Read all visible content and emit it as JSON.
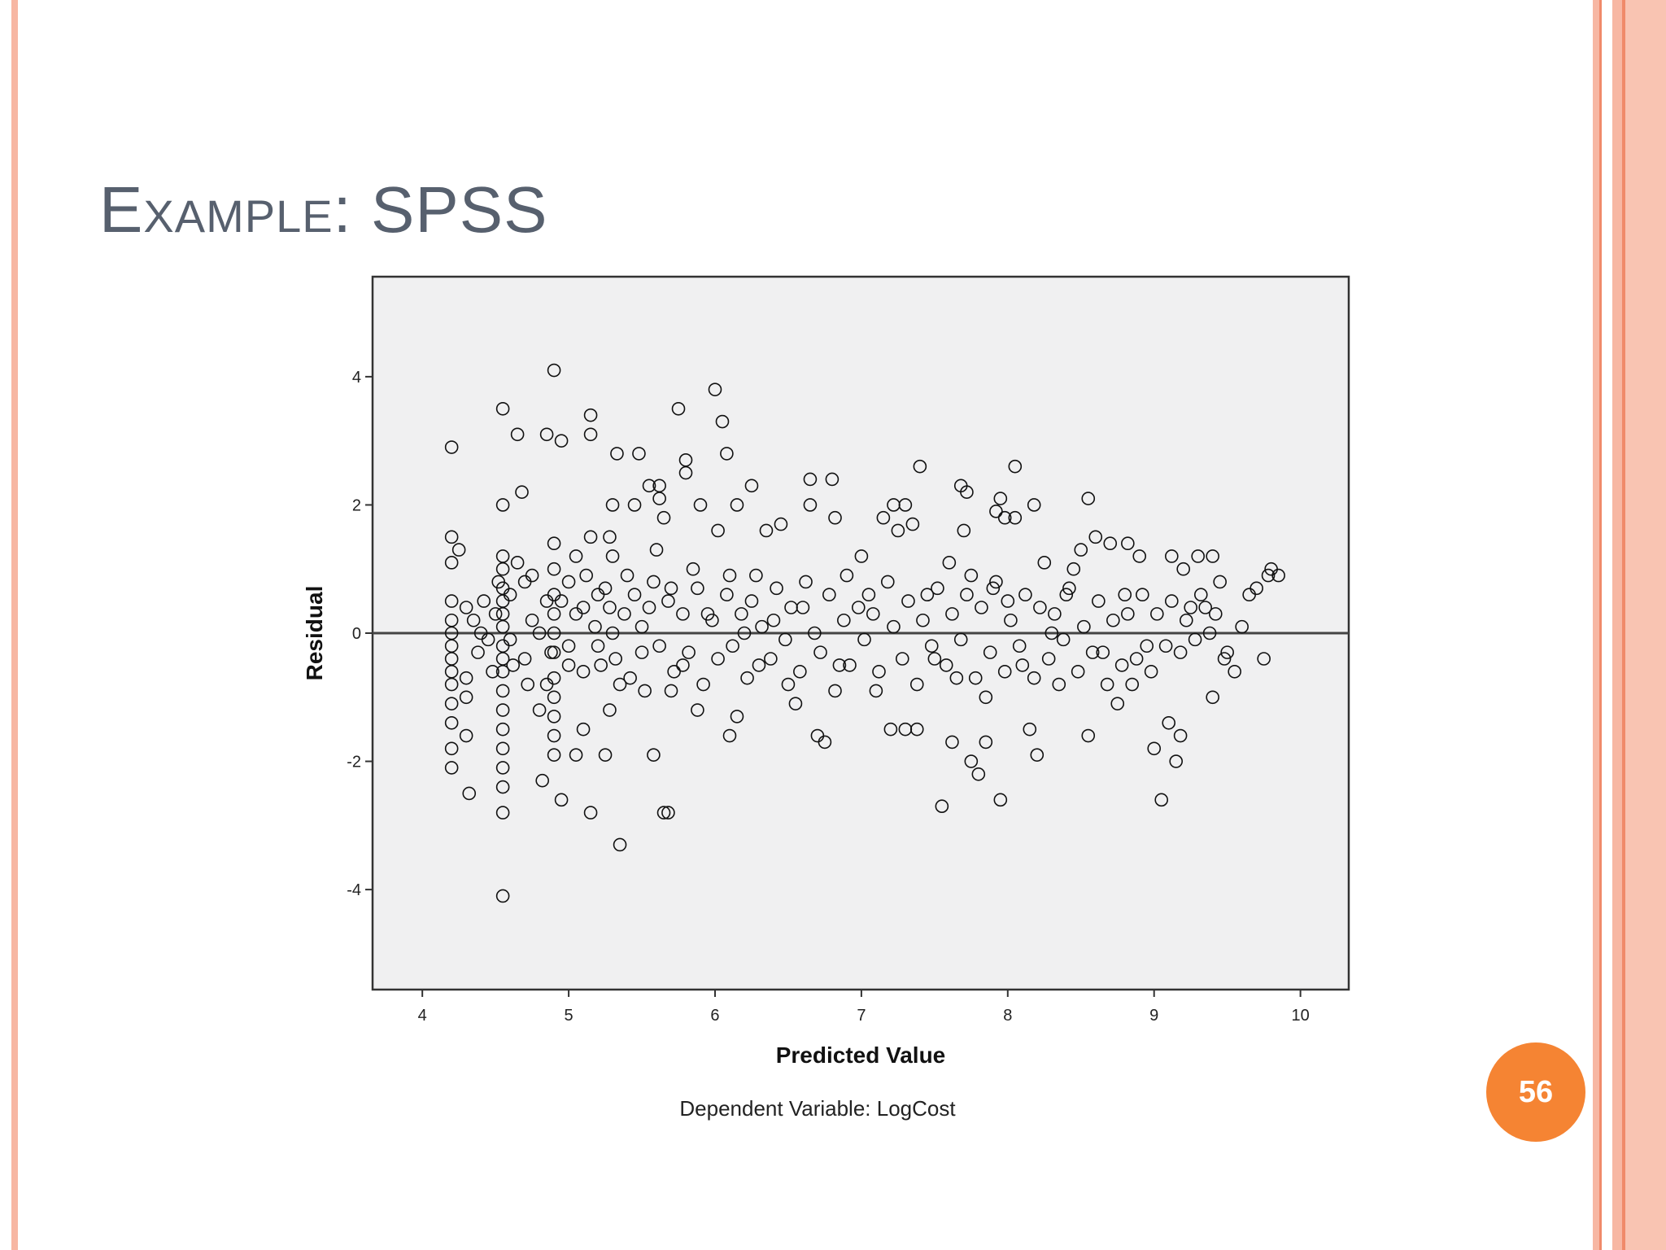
{
  "slide": {
    "title": "Example: SPSS",
    "page_number": "56"
  },
  "colors": {
    "title": "#57606e",
    "plot_background": "#f0f0f1",
    "badge": "#f58433",
    "decor_light": "#f7b7a3",
    "decor_dark": "#f08a6a"
  },
  "chart_data": {
    "type": "scatter",
    "title": "",
    "footnote": "Dependent Variable: LogCost",
    "xlabel": "Predicted Value",
    "ylabel": "Residual",
    "xlim": [
      3.66,
      10.33
    ],
    "ylim": [
      -5.56,
      5.56
    ],
    "xticks": [
      4,
      5,
      6,
      7,
      8,
      9,
      10
    ],
    "yticks": [
      -4,
      -2,
      0,
      2,
      4
    ],
    "reference_line_y": 0,
    "marker": "open-circle",
    "grid": false,
    "points": [
      [
        4.2,
        2.9
      ],
      [
        4.2,
        1.5
      ],
      [
        4.2,
        1.1
      ],
      [
        4.2,
        0.5
      ],
      [
        4.2,
        0.2
      ],
      [
        4.2,
        0.0
      ],
      [
        4.2,
        -0.2
      ],
      [
        4.2,
        -0.4
      ],
      [
        4.2,
        -0.6
      ],
      [
        4.2,
        -0.8
      ],
      [
        4.2,
        -1.1
      ],
      [
        4.2,
        -1.4
      ],
      [
        4.2,
        -1.8
      ],
      [
        4.2,
        -2.1
      ],
      [
        4.25,
        1.3
      ],
      [
        4.3,
        0.4
      ],
      [
        4.3,
        -0.7
      ],
      [
        4.3,
        -1.0
      ],
      [
        4.3,
        -1.6
      ],
      [
        4.32,
        -2.5
      ],
      [
        4.4,
        0.0
      ],
      [
        4.45,
        -0.1
      ],
      [
        4.5,
        0.3
      ],
      [
        4.55,
        3.5
      ],
      [
        4.55,
        2.0
      ],
      [
        4.55,
        1.2
      ],
      [
        4.55,
        1.0
      ],
      [
        4.55,
        0.7
      ],
      [
        4.55,
        0.5
      ],
      [
        4.55,
        0.3
      ],
      [
        4.55,
        0.1
      ],
      [
        4.55,
        -0.2
      ],
      [
        4.55,
        -0.4
      ],
      [
        4.55,
        -0.6
      ],
      [
        4.55,
        -0.9
      ],
      [
        4.55,
        -1.2
      ],
      [
        4.55,
        -1.5
      ],
      [
        4.55,
        -1.8
      ],
      [
        4.55,
        -2.1
      ],
      [
        4.55,
        -2.4
      ],
      [
        4.55,
        -2.8
      ],
      [
        4.55,
        -4.1
      ],
      [
        4.6,
        0.6
      ],
      [
        4.62,
        -0.5
      ],
      [
        4.65,
        3.1
      ],
      [
        4.68,
        2.2
      ],
      [
        4.7,
        0.8
      ],
      [
        4.72,
        -0.8
      ],
      [
        4.75,
        0.2
      ],
      [
        4.8,
        -1.2
      ],
      [
        4.82,
        -2.3
      ],
      [
        4.85,
        3.1
      ],
      [
        4.85,
        0.5
      ],
      [
        4.88,
        -0.3
      ],
      [
        4.9,
        4.1
      ],
      [
        4.9,
        1.4
      ],
      [
        4.9,
        1.0
      ],
      [
        4.9,
        0.6
      ],
      [
        4.9,
        0.3
      ],
      [
        4.9,
        0.0
      ],
      [
        4.9,
        -0.3
      ],
      [
        4.9,
        -0.7
      ],
      [
        4.9,
        -1.0
      ],
      [
        4.9,
        -1.3
      ],
      [
        4.9,
        -1.6
      ],
      [
        4.9,
        -1.9
      ],
      [
        4.95,
        3.0
      ],
      [
        4.95,
        -2.6
      ],
      [
        5.0,
        0.8
      ],
      [
        5.0,
        -0.5
      ],
      [
        5.05,
        1.2
      ],
      [
        5.05,
        -1.9
      ],
      [
        5.1,
        0.4
      ],
      [
        5.1,
        -1.5
      ],
      [
        5.15,
        3.4
      ],
      [
        5.15,
        3.1
      ],
      [
        5.15,
        1.5
      ],
      [
        5.15,
        -2.8
      ],
      [
        5.2,
        0.6
      ],
      [
        5.2,
        -0.2
      ],
      [
        5.25,
        -1.9
      ],
      [
        5.28,
        1.5
      ],
      [
        5.28,
        0.4
      ],
      [
        5.28,
        -1.2
      ],
      [
        5.3,
        2.0
      ],
      [
        5.3,
        1.2
      ],
      [
        5.3,
        0.0
      ],
      [
        5.33,
        2.8
      ],
      [
        5.35,
        -3.3
      ],
      [
        5.35,
        -0.8
      ],
      [
        5.4,
        0.9
      ],
      [
        5.45,
        2.0
      ],
      [
        5.48,
        2.8
      ],
      [
        5.5,
        -0.3
      ],
      [
        5.55,
        2.3
      ],
      [
        5.55,
        0.4
      ],
      [
        5.58,
        -1.9
      ],
      [
        5.6,
        1.3
      ],
      [
        5.62,
        2.3
      ],
      [
        5.62,
        2.1
      ],
      [
        5.65,
        1.8
      ],
      [
        5.65,
        -2.8
      ],
      [
        5.68,
        -2.8
      ],
      [
        5.7,
        0.7
      ],
      [
        5.7,
        -0.9
      ],
      [
        5.75,
        3.5
      ],
      [
        5.78,
        -0.5
      ],
      [
        5.8,
        2.7
      ],
      [
        5.8,
        2.5
      ],
      [
        5.85,
        1.0
      ],
      [
        5.88,
        -1.2
      ],
      [
        5.9,
        2.0
      ],
      [
        5.95,
        0.3
      ],
      [
        6.0,
        3.8
      ],
      [
        6.02,
        1.6
      ],
      [
        6.05,
        3.3
      ],
      [
        6.08,
        2.8
      ],
      [
        6.1,
        -1.6
      ],
      [
        6.1,
        0.9
      ],
      [
        6.15,
        -1.3
      ],
      [
        6.15,
        2.0
      ],
      [
        6.2,
        0.0
      ],
      [
        6.25,
        2.3
      ],
      [
        6.25,
        0.5
      ],
      [
        6.3,
        -0.5
      ],
      [
        6.35,
        1.6
      ],
      [
        6.4,
        0.2
      ],
      [
        6.45,
        1.7
      ],
      [
        6.5,
        -0.8
      ],
      [
        6.55,
        -1.1
      ],
      [
        6.6,
        0.4
      ],
      [
        6.65,
        2.4
      ],
      [
        6.65,
        2.0
      ],
      [
        6.7,
        -1.6
      ],
      [
        6.75,
        -1.7
      ],
      [
        6.8,
        2.4
      ],
      [
        6.82,
        1.8
      ],
      [
        6.85,
        -0.5
      ],
      [
        6.9,
        0.9
      ],
      [
        7.0,
        1.2
      ],
      [
        7.05,
        0.6
      ],
      [
        7.1,
        -0.9
      ],
      [
        7.15,
        1.8
      ],
      [
        7.2,
        -1.5
      ],
      [
        7.22,
        2.0
      ],
      [
        7.25,
        1.6
      ],
      [
        7.3,
        2.0
      ],
      [
        7.3,
        -1.5
      ],
      [
        7.35,
        1.7
      ],
      [
        7.38,
        -1.5
      ],
      [
        7.4,
        2.6
      ],
      [
        7.45,
        0.6
      ],
      [
        7.5,
        -0.4
      ],
      [
        7.55,
        -2.7
      ],
      [
        7.6,
        1.1
      ],
      [
        7.62,
        -1.7
      ],
      [
        7.65,
        -0.7
      ],
      [
        7.68,
        2.3
      ],
      [
        7.7,
        1.6
      ],
      [
        7.72,
        2.2
      ],
      [
        7.75,
        0.9
      ],
      [
        7.75,
        -2.0
      ],
      [
        7.8,
        -2.2
      ],
      [
        7.85,
        -1.7
      ],
      [
        7.85,
        -1.0
      ],
      [
        7.9,
        0.7
      ],
      [
        7.92,
        1.9
      ],
      [
        7.95,
        2.1
      ],
      [
        7.95,
        -2.6
      ],
      [
        7.98,
        1.8
      ],
      [
        8.0,
        0.5
      ],
      [
        8.05,
        1.8
      ],
      [
        8.05,
        2.6
      ],
      [
        8.1,
        -0.5
      ],
      [
        8.15,
        -1.5
      ],
      [
        8.18,
        2.0
      ],
      [
        8.2,
        -1.9
      ],
      [
        8.25,
        1.1
      ],
      [
        8.3,
        0.0
      ],
      [
        8.35,
        -0.8
      ],
      [
        8.4,
        0.6
      ],
      [
        8.45,
        1.0
      ],
      [
        8.5,
        1.3
      ],
      [
        8.55,
        2.1
      ],
      [
        8.55,
        -1.6
      ],
      [
        8.6,
        1.5
      ],
      [
        8.65,
        -0.3
      ],
      [
        8.7,
        1.4
      ],
      [
        8.75,
        -1.1
      ],
      [
        8.8,
        0.6
      ],
      [
        8.82,
        1.4
      ],
      [
        8.85,
        -0.8
      ],
      [
        8.9,
        1.2
      ],
      [
        8.95,
        -0.2
      ],
      [
        9.0,
        -1.8
      ],
      [
        9.05,
        -2.6
      ],
      [
        9.1,
        -1.4
      ],
      [
        9.12,
        1.2
      ],
      [
        9.15,
        -2.0
      ],
      [
        9.18,
        -1.6
      ],
      [
        9.2,
        1.0
      ],
      [
        9.25,
        0.4
      ],
      [
        9.3,
        1.2
      ],
      [
        9.35,
        0.4
      ],
      [
        9.4,
        1.2
      ],
      [
        9.4,
        -1.0
      ],
      [
        9.45,
        0.8
      ],
      [
        9.5,
        -0.3
      ],
      [
        9.55,
        -0.6
      ],
      [
        9.6,
        0.1
      ],
      [
        9.65,
        0.6
      ],
      [
        9.7,
        0.7
      ],
      [
        9.75,
        -0.4
      ],
      [
        9.78,
        0.9
      ],
      [
        9.8,
        1.0
      ],
      [
        9.85,
        0.9
      ],
      [
        4.35,
        0.2
      ],
      [
        4.38,
        -0.3
      ],
      [
        4.42,
        0.5
      ],
      [
        4.48,
        -0.6
      ],
      [
        4.52,
        0.8
      ],
      [
        4.6,
        -0.1
      ],
      [
        4.65,
        1.1
      ],
      [
        4.7,
        -0.4
      ],
      [
        4.75,
        0.9
      ],
      [
        4.8,
        0.0
      ],
      [
        4.85,
        -0.8
      ],
      [
        4.95,
        0.5
      ],
      [
        5.0,
        -0.2
      ],
      [
        5.05,
        0.3
      ],
      [
        5.1,
        -0.6
      ],
      [
        5.12,
        0.9
      ],
      [
        5.18,
        0.1
      ],
      [
        5.22,
        -0.5
      ],
      [
        5.25,
        0.7
      ],
      [
        5.32,
        -0.4
      ],
      [
        5.38,
        0.3
      ],
      [
        5.42,
        -0.7
      ],
      [
        5.45,
        0.6
      ],
      [
        5.5,
        0.1
      ],
      [
        5.52,
        -0.9
      ],
      [
        5.58,
        0.8
      ],
      [
        5.62,
        -0.2
      ],
      [
        5.68,
        0.5
      ],
      [
        5.72,
        -0.6
      ],
      [
        5.78,
        0.3
      ],
      [
        5.82,
        -0.3
      ],
      [
        5.88,
        0.7
      ],
      [
        5.92,
        -0.8
      ],
      [
        5.98,
        0.2
      ],
      [
        6.02,
        -0.4
      ],
      [
        6.08,
        0.6
      ],
      [
        6.12,
        -0.2
      ],
      [
        6.18,
        0.3
      ],
      [
        6.22,
        -0.7
      ],
      [
        6.28,
        0.9
      ],
      [
        6.32,
        0.1
      ],
      [
        6.38,
        -0.4
      ],
      [
        6.42,
        0.7
      ],
      [
        6.48,
        -0.1
      ],
      [
        6.52,
        0.4
      ],
      [
        6.58,
        -0.6
      ],
      [
        6.62,
        0.8
      ],
      [
        6.68,
        0.0
      ],
      [
        6.72,
        -0.3
      ],
      [
        6.78,
        0.6
      ],
      [
        6.82,
        -0.9
      ],
      [
        6.88,
        0.2
      ],
      [
        6.92,
        -0.5
      ],
      [
        6.98,
        0.4
      ],
      [
        7.02,
        -0.1
      ],
      [
        7.08,
        0.3
      ],
      [
        7.12,
        -0.6
      ],
      [
        7.18,
        0.8
      ],
      [
        7.22,
        0.1
      ],
      [
        7.28,
        -0.4
      ],
      [
        7.32,
        0.5
      ],
      [
        7.38,
        -0.8
      ],
      [
        7.42,
        0.2
      ],
      [
        7.48,
        -0.2
      ],
      [
        7.52,
        0.7
      ],
      [
        7.58,
        -0.5
      ],
      [
        7.62,
        0.3
      ],
      [
        7.68,
        -0.1
      ],
      [
        7.72,
        0.6
      ],
      [
        7.78,
        -0.7
      ],
      [
        7.82,
        0.4
      ],
      [
        7.88,
        -0.3
      ],
      [
        7.92,
        0.8
      ],
      [
        7.98,
        -0.6
      ],
      [
        8.02,
        0.2
      ],
      [
        8.08,
        -0.2
      ],
      [
        8.12,
        0.6
      ],
      [
        8.18,
        -0.7
      ],
      [
        8.22,
        0.4
      ],
      [
        8.28,
        -0.4
      ],
      [
        8.32,
        0.3
      ],
      [
        8.38,
        -0.1
      ],
      [
        8.42,
        0.7
      ],
      [
        8.48,
        -0.6
      ],
      [
        8.52,
        0.1
      ],
      [
        8.58,
        -0.3
      ],
      [
        8.62,
        0.5
      ],
      [
        8.68,
        -0.8
      ],
      [
        8.72,
        0.2
      ],
      [
        8.78,
        -0.5
      ],
      [
        8.82,
        0.3
      ],
      [
        8.88,
        -0.4
      ],
      [
        8.92,
        0.6
      ],
      [
        8.98,
        -0.6
      ],
      [
        9.02,
        0.3
      ],
      [
        9.08,
        -0.2
      ],
      [
        9.12,
        0.5
      ],
      [
        9.18,
        -0.3
      ],
      [
        9.22,
        0.2
      ],
      [
        9.28,
        -0.1
      ],
      [
        9.32,
        0.6
      ],
      [
        9.38,
        0.0
      ],
      [
        9.42,
        0.3
      ],
      [
        9.48,
        -0.4
      ]
    ]
  }
}
